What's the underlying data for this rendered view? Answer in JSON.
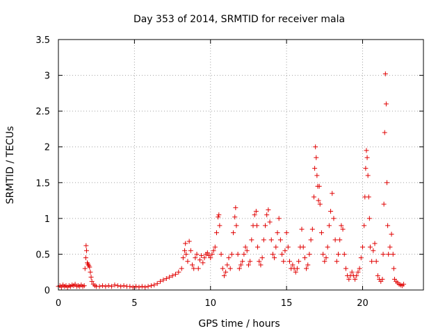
{
  "chart_data": {
    "type": "scatter",
    "title": "Day 353 of 2014, SRMTID for receiver mala",
    "xlabel": "GPS time / hours",
    "ylabel": "SRMTID / TECUs",
    "xlim": [
      0,
      24
    ],
    "ylim": [
      0,
      3.5
    ],
    "xticks": [
      0,
      5,
      10,
      15,
      20
    ],
    "yticks": [
      0,
      0.5,
      1,
      1.5,
      2,
      2.5,
      3,
      3.5
    ],
    "xtick_labels": [
      "0",
      "5",
      "10",
      "15",
      "20"
    ],
    "ytick_labels": [
      "0",
      "0.5",
      "1",
      "1.5",
      "2",
      "2.5",
      "3",
      "3.5"
    ],
    "grid": true,
    "marker": "+",
    "color": "#e00000",
    "series": [
      {
        "name": "SRMTID",
        "points": [
          [
            0.0,
            0.05
          ],
          [
            0.1,
            0.06
          ],
          [
            0.2,
            0.04
          ],
          [
            0.3,
            0.07
          ],
          [
            0.4,
            0.05
          ],
          [
            0.5,
            0.06
          ],
          [
            0.6,
            0.04
          ],
          [
            0.7,
            0.06
          ],
          [
            0.8,
            0.05
          ],
          [
            0.9,
            0.07
          ],
          [
            1.0,
            0.06
          ],
          [
            1.1,
            0.08
          ],
          [
            1.2,
            0.05
          ],
          [
            1.3,
            0.06
          ],
          [
            1.4,
            0.05
          ],
          [
            1.5,
            0.07
          ],
          [
            1.6,
            0.05
          ],
          [
            1.7,
            0.06
          ],
          [
            1.75,
            0.3
          ],
          [
            1.8,
            0.45
          ],
          [
            1.82,
            0.62
          ],
          [
            1.85,
            0.55
          ],
          [
            1.9,
            0.38
          ],
          [
            1.95,
            0.36
          ],
          [
            2.0,
            0.34
          ],
          [
            2.05,
            0.32
          ],
          [
            2.1,
            0.25
          ],
          [
            2.15,
            0.18
          ],
          [
            2.2,
            0.12
          ],
          [
            2.3,
            0.08
          ],
          [
            2.4,
            0.06
          ],
          [
            2.5,
            0.05
          ],
          [
            2.7,
            0.05
          ],
          [
            2.9,
            0.06
          ],
          [
            3.1,
            0.05
          ],
          [
            3.3,
            0.06
          ],
          [
            3.5,
            0.05
          ],
          [
            3.7,
            0.07
          ],
          [
            3.9,
            0.06
          ],
          [
            4.1,
            0.05
          ],
          [
            4.3,
            0.06
          ],
          [
            4.5,
            0.05
          ],
          [
            4.7,
            0.05
          ],
          [
            4.9,
            0.04
          ],
          [
            5.1,
            0.05
          ],
          [
            5.3,
            0.04
          ],
          [
            5.5,
            0.05
          ],
          [
            5.7,
            0.04
          ],
          [
            5.9,
            0.05
          ],
          [
            6.1,
            0.06
          ],
          [
            6.3,
            0.07
          ],
          [
            6.5,
            0.09
          ],
          [
            6.7,
            0.12
          ],
          [
            6.9,
            0.14
          ],
          [
            7.1,
            0.16
          ],
          [
            7.3,
            0.18
          ],
          [
            7.5,
            0.2
          ],
          [
            7.7,
            0.22
          ],
          [
            7.9,
            0.25
          ],
          [
            8.1,
            0.3
          ],
          [
            8.2,
            0.45
          ],
          [
            8.3,
            0.55
          ],
          [
            8.35,
            0.65
          ],
          [
            8.4,
            0.5
          ],
          [
            8.5,
            0.4
          ],
          [
            8.6,
            0.68
          ],
          [
            8.7,
            0.55
          ],
          [
            8.8,
            0.35
          ],
          [
            8.9,
            0.3
          ],
          [
            9.0,
            0.45
          ],
          [
            9.1,
            0.5
          ],
          [
            9.2,
            0.3
          ],
          [
            9.3,
            0.42
          ],
          [
            9.4,
            0.48
          ],
          [
            9.5,
            0.38
          ],
          [
            9.6,
            0.45
          ],
          [
            9.7,
            0.5
          ],
          [
            9.8,
            0.52
          ],
          [
            9.9,
            0.48
          ],
          [
            10.0,
            0.45
          ],
          [
            10.1,
            0.5
          ],
          [
            10.2,
            0.55
          ],
          [
            10.3,
            0.6
          ],
          [
            10.4,
            0.8
          ],
          [
            10.5,
            1.02
          ],
          [
            10.55,
            1.05
          ],
          [
            10.6,
            0.9
          ],
          [
            10.7,
            0.5
          ],
          [
            10.8,
            0.3
          ],
          [
            10.9,
            0.2
          ],
          [
            11.0,
            0.25
          ],
          [
            11.1,
            0.35
          ],
          [
            11.2,
            0.45
          ],
          [
            11.3,
            0.3
          ],
          [
            11.4,
            0.5
          ],
          [
            11.5,
            0.8
          ],
          [
            11.6,
            1.02
          ],
          [
            11.65,
            1.15
          ],
          [
            11.7,
            0.9
          ],
          [
            11.8,
            0.5
          ],
          [
            11.9,
            0.3
          ],
          [
            12.0,
            0.35
          ],
          [
            12.1,
            0.4
          ],
          [
            12.2,
            0.5
          ],
          [
            12.3,
            0.6
          ],
          [
            12.4,
            0.55
          ],
          [
            12.5,
            0.35
          ],
          [
            12.6,
            0.4
          ],
          [
            12.7,
            0.7
          ],
          [
            12.8,
            0.9
          ],
          [
            12.9,
            1.05
          ],
          [
            13.0,
            1.1
          ],
          [
            13.05,
            0.9
          ],
          [
            13.1,
            0.6
          ],
          [
            13.2,
            0.4
          ],
          [
            13.3,
            0.35
          ],
          [
            13.4,
            0.45
          ],
          [
            13.5,
            0.7
          ],
          [
            13.6,
            0.9
          ],
          [
            13.7,
            1.05
          ],
          [
            13.8,
            1.12
          ],
          [
            13.9,
            0.95
          ],
          [
            14.0,
            0.7
          ],
          [
            14.1,
            0.5
          ],
          [
            14.2,
            0.45
          ],
          [
            14.3,
            0.6
          ],
          [
            14.4,
            0.8
          ],
          [
            14.5,
            1.0
          ],
          [
            14.6,
            0.7
          ],
          [
            14.7,
            0.5
          ],
          [
            14.8,
            0.4
          ],
          [
            14.9,
            0.55
          ],
          [
            15.0,
            0.8
          ],
          [
            15.1,
            0.6
          ],
          [
            15.2,
            0.4
          ],
          [
            15.3,
            0.3
          ],
          [
            15.4,
            0.35
          ],
          [
            15.5,
            0.3
          ],
          [
            15.6,
            0.25
          ],
          [
            15.7,
            0.3
          ],
          [
            15.8,
            0.4
          ],
          [
            15.9,
            0.6
          ],
          [
            16.0,
            0.85
          ],
          [
            16.1,
            0.6
          ],
          [
            16.2,
            0.45
          ],
          [
            16.3,
            0.3
          ],
          [
            16.4,
            0.35
          ],
          [
            16.5,
            0.5
          ],
          [
            16.6,
            0.7
          ],
          [
            16.7,
            0.85
          ],
          [
            16.8,
            1.3
          ],
          [
            16.85,
            1.7
          ],
          [
            16.9,
            2.0
          ],
          [
            16.95,
            1.85
          ],
          [
            17.0,
            1.6
          ],
          [
            17.05,
            1.45
          ],
          [
            17.1,
            1.25
          ],
          [
            17.15,
            1.45
          ],
          [
            17.2,
            1.2
          ],
          [
            17.3,
            0.8
          ],
          [
            17.4,
            0.5
          ],
          [
            17.5,
            0.4
          ],
          [
            17.6,
            0.45
          ],
          [
            17.7,
            0.6
          ],
          [
            17.8,
            0.9
          ],
          [
            17.9,
            1.1
          ],
          [
            18.0,
            1.35
          ],
          [
            18.1,
            1.0
          ],
          [
            18.2,
            0.7
          ],
          [
            18.3,
            0.4
          ],
          [
            18.4,
            0.5
          ],
          [
            18.5,
            0.7
          ],
          [
            18.6,
            0.9
          ],
          [
            18.7,
            0.85
          ],
          [
            18.8,
            0.5
          ],
          [
            18.9,
            0.3
          ],
          [
            19.0,
            0.2
          ],
          [
            19.1,
            0.15
          ],
          [
            19.2,
            0.2
          ],
          [
            19.3,
            0.25
          ],
          [
            19.4,
            0.2
          ],
          [
            19.5,
            0.15
          ],
          [
            19.6,
            0.2
          ],
          [
            19.7,
            0.25
          ],
          [
            19.8,
            0.3
          ],
          [
            19.9,
            0.45
          ],
          [
            20.0,
            0.6
          ],
          [
            20.1,
            0.9
          ],
          [
            20.15,
            1.3
          ],
          [
            20.2,
            1.7
          ],
          [
            20.25,
            1.95
          ],
          [
            20.3,
            1.85
          ],
          [
            20.35,
            1.6
          ],
          [
            20.4,
            1.3
          ],
          [
            20.45,
            1.0
          ],
          [
            20.5,
            0.6
          ],
          [
            20.6,
            0.4
          ],
          [
            20.7,
            0.55
          ],
          [
            20.8,
            0.65
          ],
          [
            20.9,
            0.4
          ],
          [
            21.0,
            0.2
          ],
          [
            21.1,
            0.15
          ],
          [
            21.2,
            0.12
          ],
          [
            21.3,
            0.15
          ],
          [
            21.35,
            0.5
          ],
          [
            21.4,
            1.2
          ],
          [
            21.45,
            2.2
          ],
          [
            21.5,
            3.02
          ],
          [
            21.55,
            2.6
          ],
          [
            21.6,
            1.5
          ],
          [
            21.65,
            0.9
          ],
          [
            21.7,
            0.5
          ],
          [
            21.8,
            0.6
          ],
          [
            21.9,
            0.78
          ],
          [
            22.0,
            0.5
          ],
          [
            22.05,
            0.3
          ],
          [
            22.1,
            0.15
          ],
          [
            22.2,
            0.12
          ],
          [
            22.3,
            0.1
          ],
          [
            22.4,
            0.08
          ],
          [
            22.5,
            0.07
          ],
          [
            22.6,
            0.06
          ],
          [
            22.7,
            0.08
          ]
        ]
      }
    ]
  }
}
